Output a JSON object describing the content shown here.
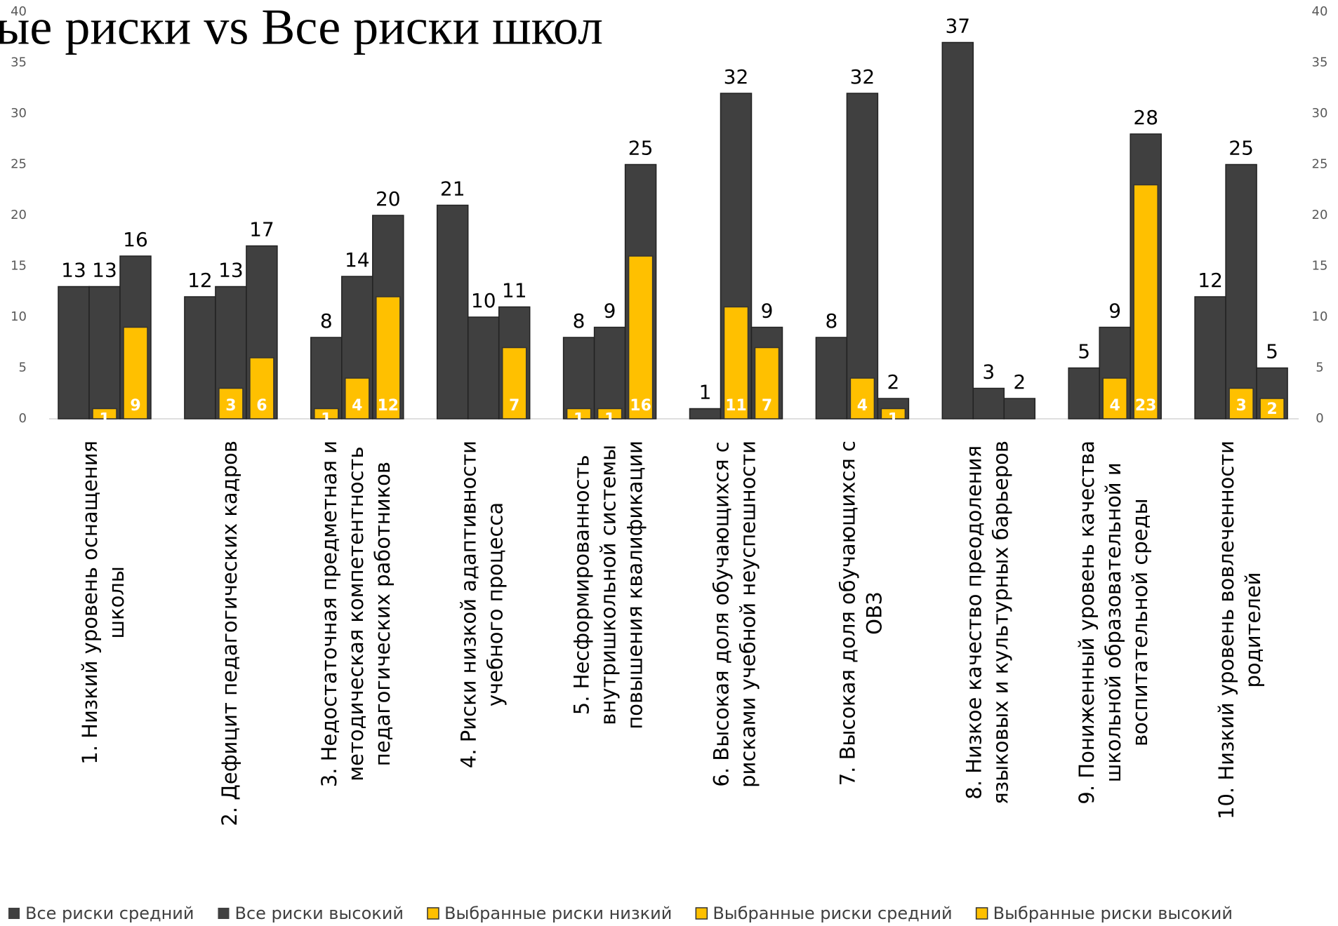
{
  "chart_data": {
    "type": "bar",
    "title": "ые риски vs Все риски школ",
    "categories": [
      [
        "1. Низкий уровень оснащения",
        "школы"
      ],
      [
        "2. Дефицит педагогических кадров"
      ],
      [
        "3. Недостаточная предметная и",
        "методическая компетентность",
        "педагогических работников"
      ],
      [
        "4. Риски низкой адаптивности",
        "учебного процесса"
      ],
      [
        "5. Несформированность",
        "внутришкольной системы",
        "повышения квалификации"
      ],
      [
        "6. Высокая доля обучающихся с",
        "рисками учебной неуспешности"
      ],
      [
        "7. Высокая доля обучающихся с",
        "ОВЗ"
      ],
      [
        "8. Низкое качество преодоления",
        "языковых и культурных барьеров"
      ],
      [
        "9. Пониженный уровень качества",
        "школьной образовательной и",
        "воспитательной среды"
      ],
      [
        "10. Низкий уровень вовлеченности",
        "родителей"
      ]
    ],
    "series": [
      {
        "color": "#404040",
        "values": [
          13,
          12,
          8,
          21,
          8,
          1,
          8,
          37,
          5,
          12
        ]
      },
      {
        "name": "Все риски средний",
        "color": "#404040",
        "values": [
          13,
          13,
          14,
          10,
          9,
          32,
          32,
          3,
          9,
          25
        ]
      },
      {
        "name": "Все риски высокий",
        "color": "#404040",
        "values": [
          16,
          17,
          20,
          11,
          25,
          9,
          2,
          2,
          28,
          5
        ]
      },
      {
        "name": "Выбранные риски низкий",
        "color": "#ffc000",
        "axis": "y2",
        "values": [
          0,
          0,
          1,
          0,
          1,
          null,
          0,
          0,
          0,
          0
        ]
      },
      {
        "name": "Выбранные риски средний",
        "color": "#ffc000",
        "axis": "y2",
        "values": [
          1,
          3,
          4,
          0,
          1,
          11,
          4,
          0,
          4,
          3
        ]
      },
      {
        "name": "Выбранные риски высокий",
        "color": "#ffc000",
        "axis": "y2",
        "values": [
          9,
          6,
          12,
          7,
          16,
          7,
          1,
          0,
          23,
          2
        ]
      }
    ],
    "ylim": [
      0,
      40
    ],
    "yticks": [
      0,
      5,
      10,
      15,
      20,
      25,
      30,
      35,
      40
    ],
    "y2lim": [
      0,
      40
    ],
    "y2ticks": [
      0,
      5,
      10,
      15,
      20,
      25,
      30,
      35,
      40
    ],
    "grid": false,
    "legend": "bottom"
  }
}
